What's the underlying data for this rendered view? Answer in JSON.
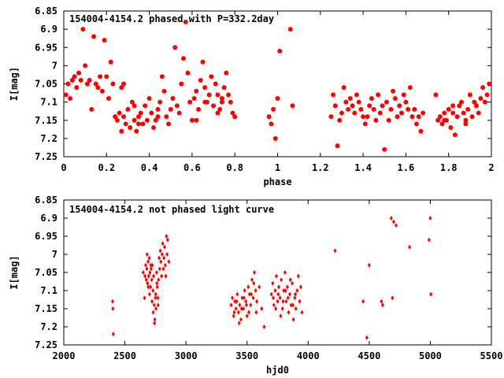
{
  "chart_data": [
    {
      "type": "scatter",
      "title": "154004-4154.2 phased with P=332.2day",
      "xlabel": "phase",
      "ylabel": "I[mag]",
      "xlim": [
        0,
        2
      ],
      "ylim": [
        6.85,
        7.25
      ],
      "y_inverted": true,
      "xticks": [
        0,
        0.2,
        0.4,
        0.6,
        0.8,
        1,
        1.2,
        1.4,
        1.6,
        1.8,
        2
      ],
      "xtick_labels": [
        "0",
        "0.2",
        "0.4",
        "0.6",
        "0.8",
        "1",
        "1.2",
        "1.4",
        "1.6",
        "1.8",
        "2"
      ],
      "yticks": [
        6.85,
        6.9,
        6.95,
        7,
        7.05,
        7.1,
        7.15,
        7.2,
        7.25
      ],
      "ytick_labels": [
        "6.85",
        "6.9",
        "6.95",
        "7",
        "7.05",
        "7.1",
        "7.15",
        "7.2",
        "7.25"
      ],
      "marker_color": "#ff0000",
      "marker": "filled-circle",
      "points": [
        [
          0.01,
          7.08
        ],
        [
          0.02,
          7.05
        ],
        [
          0.03,
          7.09
        ],
        [
          0.04,
          7.04
        ],
        [
          0.05,
          7.03
        ],
        [
          0.06,
          7.06
        ],
        [
          0.07,
          7.02
        ],
        [
          0.08,
          7.04
        ],
        [
          0.09,
          6.9
        ],
        [
          0.1,
          7.0
        ],
        [
          0.11,
          7.05
        ],
        [
          0.12,
          7.04
        ],
        [
          0.13,
          7.12
        ],
        [
          0.14,
          6.92
        ],
        [
          0.15,
          7.05
        ],
        [
          0.16,
          7.06
        ],
        [
          0.17,
          7.03
        ],
        [
          0.18,
          7.07
        ],
        [
          0.19,
          6.93
        ],
        [
          0.2,
          7.03
        ],
        [
          0.21,
          7.09
        ],
        [
          0.22,
          6.99
        ],
        [
          0.23,
          7.05
        ],
        [
          0.24,
          7.14
        ],
        [
          0.25,
          7.15
        ],
        [
          0.26,
          7.13
        ],
        [
          0.27,
          7.18
        ],
        [
          0.28,
          7.14
        ],
        [
          0.29,
          7.16
        ],
        [
          0.3,
          7.12
        ],
        [
          0.31,
          7.17
        ],
        [
          0.32,
          7.1
        ],
        [
          0.33,
          7.15
        ],
        [
          0.34,
          7.18
        ],
        [
          0.35,
          7.14
        ],
        [
          0.36,
          7.13
        ],
        [
          0.37,
          7.16
        ],
        [
          0.38,
          7.11
        ],
        [
          0.39,
          7.15
        ],
        [
          0.4,
          7.09
        ],
        [
          0.41,
          7.13
        ],
        [
          0.42,
          7.17
        ],
        [
          0.43,
          7.15
        ],
        [
          0.44,
          7.12
        ],
        [
          0.45,
          7.1
        ],
        [
          0.46,
          7.03
        ],
        [
          0.47,
          7.07
        ],
        [
          0.48,
          7.14
        ],
        [
          0.49,
          7.16
        ],
        [
          0.5,
          7.12
        ],
        [
          0.51,
          7.09
        ],
        [
          0.52,
          6.95
        ],
        [
          0.53,
          7.11
        ],
        [
          0.54,
          7.13
        ],
        [
          0.55,
          7.05
        ],
        [
          0.56,
          6.98
        ],
        [
          0.57,
          6.88
        ],
        [
          0.58,
          7.02
        ],
        [
          0.59,
          7.1
        ],
        [
          0.6,
          7.15
        ],
        [
          0.61,
          7.09
        ],
        [
          0.62,
          7.07
        ],
        [
          0.63,
          7.12
        ],
        [
          0.64,
          7.04
        ],
        [
          0.65,
          6.99
        ],
        [
          0.66,
          7.06
        ],
        [
          0.67,
          7.1
        ],
        [
          0.68,
          7.08
        ],
        [
          0.69,
          7.03
        ],
        [
          0.7,
          7.11
        ],
        [
          0.71,
          7.05
        ],
        [
          0.72,
          7.08
        ],
        [
          0.73,
          7.12
        ],
        [
          0.74,
          7.09
        ],
        [
          0.75,
          7.06
        ],
        [
          0.76,
          7.02
        ],
        [
          0.77,
          7.08
        ],
        [
          0.78,
          7.1
        ],
        [
          0.79,
          7.13
        ],
        [
          0.8,
          7.14
        ],
        [
          0.96,
          7.14
        ],
        [
          0.97,
          7.16
        ],
        [
          0.98,
          7.12
        ],
        [
          0.99,
          7.2
        ],
        [
          1.0,
          7.09
        ],
        [
          1.01,
          6.96
        ],
        [
          1.06,
          6.9
        ],
        [
          1.07,
          7.11
        ],
        [
          1.25,
          7.14
        ],
        [
          1.26,
          7.08
        ],
        [
          1.27,
          7.11
        ],
        [
          1.28,
          7.22
        ],
        [
          1.29,
          7.15
        ],
        [
          1.3,
          7.13
        ],
        [
          1.31,
          7.06
        ],
        [
          1.32,
          7.1
        ],
        [
          1.33,
          7.12
        ],
        [
          1.34,
          7.09
        ],
        [
          1.35,
          7.11
        ],
        [
          1.36,
          7.13
        ],
        [
          1.37,
          7.08
        ],
        [
          1.38,
          7.1
        ],
        [
          1.39,
          7.12
        ],
        [
          1.4,
          7.14
        ],
        [
          1.41,
          7.16
        ],
        [
          1.42,
          7.14
        ],
        [
          1.43,
          7.11
        ],
        [
          1.44,
          7.09
        ],
        [
          1.45,
          7.12
        ],
        [
          1.46,
          7.15
        ],
        [
          1.47,
          7.08
        ],
        [
          1.48,
          7.13
        ],
        [
          1.49,
          7.11
        ],
        [
          1.5,
          7.23
        ],
        [
          1.51,
          7.1
        ],
        [
          1.52,
          7.15
        ],
        [
          1.53,
          7.12
        ],
        [
          1.54,
          7.07
        ],
        [
          1.55,
          7.09
        ],
        [
          1.56,
          7.14
        ],
        [
          1.57,
          7.11
        ],
        [
          1.58,
          7.13
        ],
        [
          1.59,
          7.08
        ],
        [
          1.6,
          7.1
        ],
        [
          1.61,
          7.12
        ],
        [
          1.62,
          7.06
        ],
        [
          1.63,
          7.14
        ],
        [
          1.64,
          7.12
        ],
        [
          1.65,
          7.16
        ],
        [
          1.66,
          7.14
        ],
        [
          1.67,
          7.18
        ],
        [
          1.68,
          7.13
        ],
        [
          1.74,
          7.08
        ],
        [
          1.75,
          7.15
        ],
        [
          1.76,
          7.14
        ],
        [
          1.77,
          7.16
        ],
        [
          1.78,
          7.13
        ],
        [
          1.79,
          7.15
        ],
        [
          1.8,
          7.12
        ],
        [
          1.81,
          7.17
        ],
        [
          1.82,
          7.13
        ],
        [
          1.83,
          7.19
        ],
        [
          1.84,
          7.14
        ],
        [
          1.85,
          7.11
        ],
        [
          1.86,
          7.1
        ],
        [
          1.87,
          7.13
        ],
        [
          1.88,
          7.15
        ],
        [
          1.89,
          7.12
        ],
        [
          1.9,
          7.08
        ],
        [
          1.91,
          7.14
        ],
        [
          1.92,
          7.1
        ],
        [
          1.93,
          7.11
        ],
        [
          1.94,
          7.13
        ],
        [
          1.95,
          7.09
        ],
        [
          1.96,
          7.06
        ],
        [
          1.97,
          7.1
        ],
        [
          1.98,
          7.08
        ],
        [
          1.99,
          7.05
        ],
        [
          1.88,
          7.16
        ],
        [
          1.82,
          7.11
        ],
        [
          1.78,
          7.15
        ],
        [
          0.27,
          7.06
        ],
        [
          0.28,
          7.05
        ],
        [
          0.33,
          7.11
        ],
        [
          0.35,
          7.16
        ],
        [
          0.44,
          7.14
        ],
        [
          0.62,
          7.15
        ],
        [
          0.66,
          7.1
        ],
        [
          0.72,
          7.13
        ],
        [
          0.74,
          7.1
        ]
      ]
    },
    {
      "type": "scatter",
      "title": "154004-4154.2 not phased light curve",
      "xlabel": "hjd0",
      "ylabel": "I[mag]",
      "xlim": [
        2000,
        5500
      ],
      "ylim": [
        6.85,
        7.25
      ],
      "y_inverted": true,
      "xticks": [
        2000,
        2500,
        3000,
        3500,
        4000,
        4500,
        5000,
        5500
      ],
      "xtick_labels": [
        "2000",
        "2500",
        "3000",
        "3500",
        "4000",
        "4500",
        "5000",
        "5500"
      ],
      "yticks": [
        6.85,
        6.9,
        6.95,
        7,
        7.05,
        7.1,
        7.15,
        7.2,
        7.25
      ],
      "ytick_labels": [
        "6.85",
        "6.9",
        "6.95",
        "7",
        "7.05",
        "7.1",
        "7.15",
        "7.2",
        "7.25"
      ],
      "marker_color": "#ff0000",
      "marker": "diamond",
      "points": [
        [
          2400,
          7.13
        ],
        [
          2402,
          7.15
        ],
        [
          2405,
          7.22
        ],
        [
          2650,
          7.05
        ],
        [
          2660,
          7.12
        ],
        [
          2665,
          7.06
        ],
        [
          2670,
          7.03
        ],
        [
          2675,
          7.07
        ],
        [
          2680,
          7.04
        ],
        [
          2685,
          7.08
        ],
        [
          2690,
          7.02
        ],
        [
          2695,
          7.06
        ],
        [
          2700,
          7.01
        ],
        [
          2705,
          7.05
        ],
        [
          2710,
          7.09
        ],
        [
          2715,
          7.04
        ],
        [
          2720,
          7.07
        ],
        [
          2725,
          7.03
        ],
        [
          2730,
          7.1
        ],
        [
          2735,
          7.06
        ],
        [
          2740,
          7.14
        ],
        [
          2745,
          7.18
        ],
        [
          2750,
          7.12
        ],
        [
          2755,
          7.15
        ],
        [
          2760,
          7.05
        ],
        [
          2765,
          7.09
        ],
        [
          2770,
          7.12
        ],
        [
          2775,
          7.07
        ],
        [
          2780,
          7.01
        ],
        [
          2785,
          7.04
        ],
        [
          2790,
          6.99
        ],
        [
          2795,
          7.02
        ],
        [
          2800,
          7.06
        ],
        [
          2805,
          7.0
        ],
        [
          2810,
          6.97
        ],
        [
          2815,
          7.04
        ],
        [
          2820,
          7.01
        ],
        [
          2825,
          6.98
        ],
        [
          2830,
          7.03
        ],
        [
          2835,
          7.06
        ],
        [
          2840,
          6.95
        ],
        [
          2845,
          7.0
        ],
        [
          2850,
          6.96
        ],
        [
          2860,
          7.02
        ],
        [
          2682,
          7.0
        ],
        [
          2692,
          7.09
        ],
        [
          2702,
          7.11
        ],
        [
          2712,
          7.03
        ],
        [
          2722,
          7.13
        ],
        [
          2732,
          7.16
        ],
        [
          2742,
          7.19
        ],
        [
          2752,
          7.11
        ],
        [
          2762,
          7.08
        ],
        [
          2772,
          7.14
        ],
        [
          3370,
          7.14
        ],
        [
          3380,
          7.12
        ],
        [
          3390,
          7.17
        ],
        [
          3400,
          7.13
        ],
        [
          3410,
          7.15
        ],
        [
          3420,
          7.11
        ],
        [
          3430,
          7.16
        ],
        [
          3440,
          7.14
        ],
        [
          3450,
          7.18
        ],
        [
          3460,
          7.12
        ],
        [
          3470,
          7.15
        ],
        [
          3480,
          7.1
        ],
        [
          3490,
          7.13
        ],
        [
          3500,
          7.17
        ],
        [
          3510,
          7.09
        ],
        [
          3520,
          7.11
        ],
        [
          3530,
          7.14
        ],
        [
          3540,
          7.07
        ],
        [
          3550,
          7.12
        ],
        [
          3560,
          7.05
        ],
        [
          3570,
          7.1
        ],
        [
          3580,
          7.13
        ],
        [
          3600,
          7.09
        ],
        [
          3620,
          7.15
        ],
        [
          3640,
          7.2
        ],
        [
          3395,
          7.16
        ],
        [
          3415,
          7.13
        ],
        [
          3435,
          7.19
        ],
        [
          3455,
          7.15
        ],
        [
          3475,
          7.12
        ],
        [
          3495,
          7.14
        ],
        [
          3515,
          7.16
        ],
        [
          3535,
          7.11
        ],
        [
          3555,
          7.08
        ],
        [
          3575,
          7.16
        ],
        [
          3700,
          7.11
        ],
        [
          3710,
          7.08
        ],
        [
          3720,
          7.14
        ],
        [
          3730,
          7.1
        ],
        [
          3740,
          7.06
        ],
        [
          3750,
          7.13
        ],
        [
          3760,
          7.09
        ],
        [
          3770,
          7.12
        ],
        [
          3780,
          7.07
        ],
        [
          3790,
          7.15
        ],
        [
          3800,
          7.1
        ],
        [
          3810,
          7.05
        ],
        [
          3820,
          7.13
        ],
        [
          3830,
          7.09
        ],
        [
          3840,
          7.16
        ],
        [
          3850,
          7.11
        ],
        [
          3860,
          7.14
        ],
        [
          3870,
          7.08
        ],
        [
          3880,
          7.18
        ],
        [
          3890,
          7.12
        ],
        [
          3900,
          7.15
        ],
        [
          3910,
          7.1
        ],
        [
          3920,
          7.06
        ],
        [
          3930,
          7.13
        ],
        [
          3940,
          7.09
        ],
        [
          3950,
          7.16
        ],
        [
          3715,
          7.12
        ],
        [
          3735,
          7.15
        ],
        [
          3755,
          7.11
        ],
        [
          3775,
          7.17
        ],
        [
          3795,
          7.13
        ],
        [
          3815,
          7.1
        ],
        [
          3835,
          7.12
        ],
        [
          3855,
          7.07
        ],
        [
          3875,
          7.14
        ],
        [
          3895,
          7.11
        ],
        [
          4220,
          6.99
        ],
        [
          4450,
          7.13
        ],
        [
          4480,
          7.23
        ],
        [
          4500,
          7.03
        ],
        [
          4600,
          7.13
        ],
        [
          4610,
          7.14
        ],
        [
          4680,
          6.9
        ],
        [
          4690,
          7.12
        ],
        [
          4700,
          6.91
        ],
        [
          4720,
          6.92
        ],
        [
          4830,
          6.98
        ],
        [
          4990,
          6.96
        ],
        [
          5000,
          6.9
        ],
        [
          5005,
          7.11
        ]
      ]
    }
  ]
}
